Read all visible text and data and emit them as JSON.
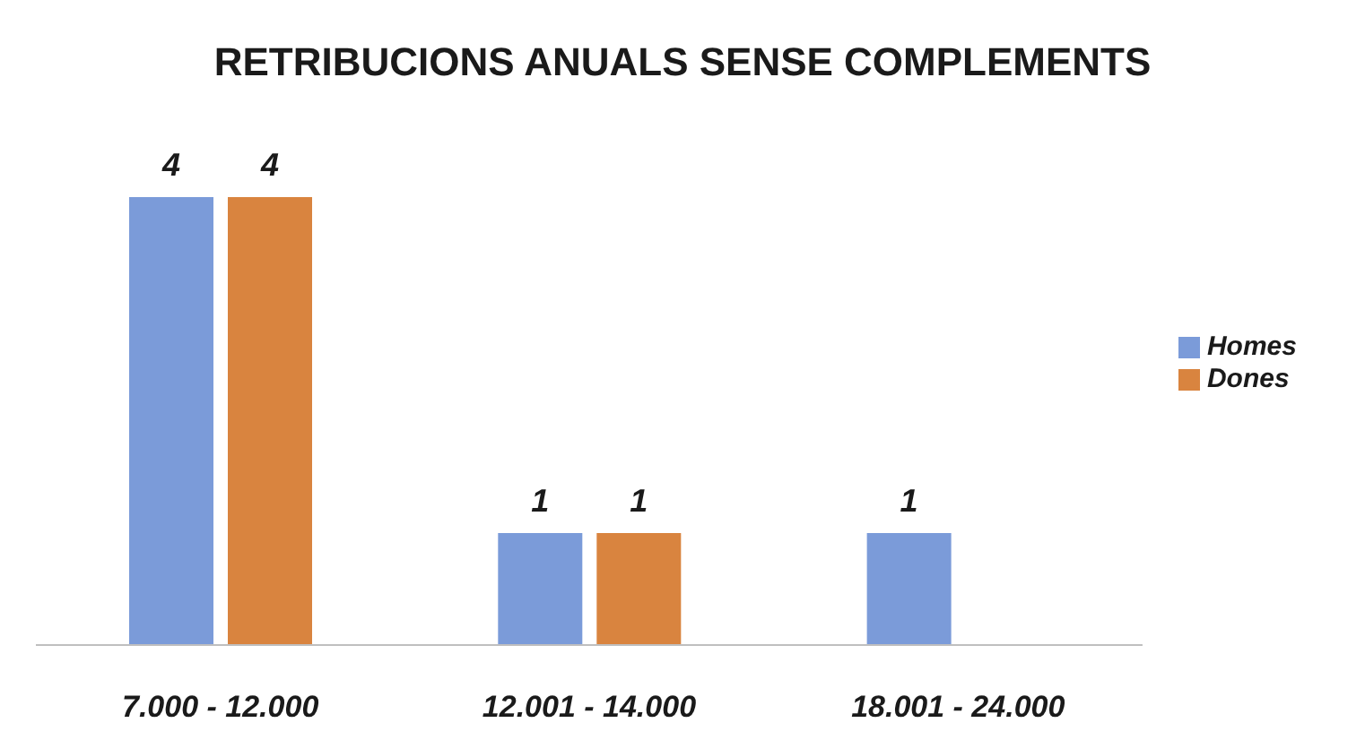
{
  "chart_data": {
    "type": "bar",
    "title": "RETRIBUCIONS ANUALS SENSE COMPLEMENTS",
    "categories": [
      "7.000 - 12.000",
      "12.001 - 14.000",
      "18.001 - 24.000"
    ],
    "series": [
      {
        "name": "Homes",
        "color": "#7b9bd9",
        "values": [
          4,
          1,
          1
        ]
      },
      {
        "name": "Dones",
        "color": "#d9843f",
        "values": [
          4,
          1,
          null
        ]
      }
    ],
    "data_labels": true,
    "legend": "right",
    "grid": false
  }
}
